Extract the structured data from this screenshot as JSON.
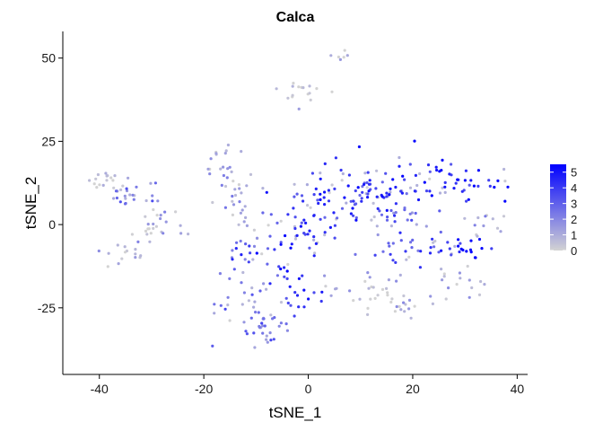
{
  "chart_data": {
    "type": "scatter",
    "title": "Calca",
    "xlabel": "tSNE_1",
    "ylabel": "tSNE_2",
    "xlim": [
      -47,
      42
    ],
    "ylim": [
      -45,
      58
    ],
    "xticks": [
      -40,
      -20,
      0,
      20,
      40
    ],
    "yticks": [
      -25,
      0,
      25,
      50
    ],
    "grid": false,
    "legend": {
      "position": "right",
      "ticks": [
        0,
        1,
        2,
        3,
        4,
        5
      ],
      "min": 0,
      "max": 5.5,
      "color_low": "#d3d3d3",
      "color_high": "#0000ff"
    },
    "clusters": [
      {
        "cx": -38,
        "cy": 13,
        "sx": 2.5,
        "sy": 2.5,
        "n": 22,
        "expr": 0.1
      },
      {
        "cx": -33,
        "cy": 8,
        "sx": 2.5,
        "sy": 3,
        "n": 18,
        "expr": 0.4
      },
      {
        "cx": -28,
        "cy": 0,
        "sx": 3,
        "sy": 3,
        "n": 20,
        "expr": 0.15
      },
      {
        "cx": -34,
        "cy": -8,
        "sx": 2.5,
        "sy": 3,
        "n": 20,
        "expr": 0.15
      },
      {
        "cx": -17,
        "cy": 20,
        "sx": 1.5,
        "sy": 3,
        "n": 14,
        "expr": 0.1
      },
      {
        "cx": -14,
        "cy": 10,
        "sx": 2,
        "sy": 4,
        "n": 22,
        "expr": 0.2
      },
      {
        "cx": -11,
        "cy": 1,
        "sx": 1.5,
        "sy": 3,
        "n": 10,
        "expr": 0.2
      },
      {
        "cx": -12,
        "cy": -9,
        "sx": 3,
        "sy": 3,
        "n": 22,
        "expr": 0.6
      },
      {
        "cx": -13,
        "cy": -22,
        "sx": 2.5,
        "sy": 5,
        "n": 25,
        "expr": 0.35
      },
      {
        "cx": -8,
        "cy": -31,
        "sx": 3,
        "sy": 3.5,
        "n": 28,
        "expr": 0.45
      },
      {
        "cx": -6,
        "cy": -14,
        "sx": 1.5,
        "sy": 3,
        "n": 12,
        "expr": 0.85
      },
      {
        "cx": -1,
        "cy": -22,
        "sx": 2,
        "sy": 3,
        "n": 16,
        "expr": 0.8
      },
      {
        "cx": -2,
        "cy": 41,
        "sx": 2,
        "sy": 3,
        "n": 16,
        "expr": 0.02
      },
      {
        "cx": 6,
        "cy": 51,
        "sx": 1,
        "sy": 1,
        "n": 6,
        "expr": 0.05
      },
      {
        "cx": 4,
        "cy": 8,
        "sx": 5,
        "sy": 5,
        "n": 60,
        "expr": 0.75
      },
      {
        "cx": 0,
        "cy": -3,
        "sx": 4,
        "sy": 3.5,
        "n": 30,
        "expr": 0.75
      },
      {
        "cx": 13,
        "cy": 8,
        "sx": 4,
        "sy": 5,
        "n": 55,
        "expr": 0.72
      },
      {
        "cx": 24,
        "cy": 14,
        "sx": 4,
        "sy": 4,
        "n": 35,
        "expr": 0.78
      },
      {
        "cx": 33,
        "cy": 12,
        "sx": 2.5,
        "sy": 2.5,
        "n": 18,
        "expr": 0.8
      },
      {
        "cx": 20,
        "cy": 2,
        "sx": 5,
        "sy": 3,
        "n": 20,
        "expr": 0.45
      },
      {
        "cx": 20,
        "cy": -8,
        "sx": 4,
        "sy": 2.5,
        "n": 24,
        "expr": 0.6
      },
      {
        "cx": 28,
        "cy": -8,
        "sx": 3,
        "sy": 2,
        "n": 22,
        "expr": 0.9
      },
      {
        "cx": 33,
        "cy": 0,
        "sx": 2,
        "sy": 2.5,
        "n": 12,
        "expr": 0.2
      },
      {
        "cx": 12,
        "cy": -20,
        "sx": 4,
        "sy": 3.5,
        "n": 28,
        "expr": 0.12
      },
      {
        "cx": 19,
        "cy": -25,
        "sx": 3,
        "sy": 2,
        "n": 14,
        "expr": 0.1
      },
      {
        "cx": 28,
        "cy": -18,
        "sx": 3,
        "sy": 3,
        "n": 16,
        "expr": 0.1
      }
    ]
  }
}
